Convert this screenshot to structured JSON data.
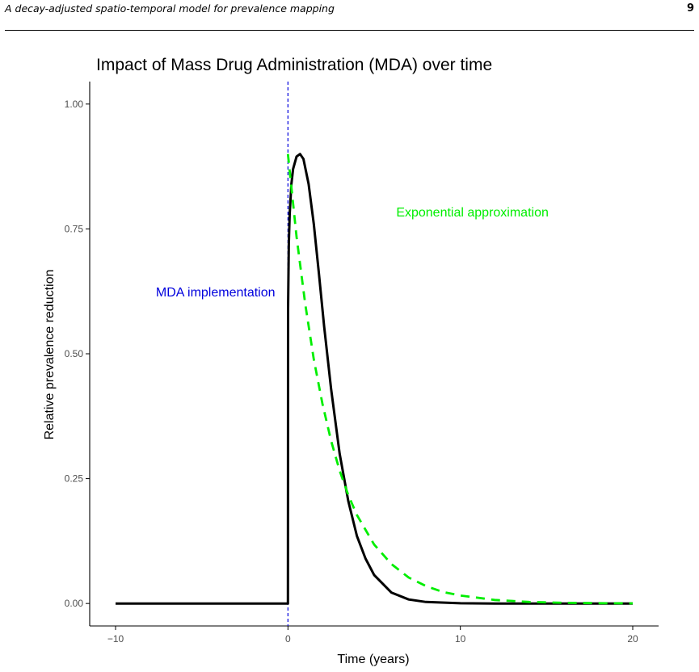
{
  "page": {
    "running_title": "A decay-adjusted spatio-temporal model for prevalence mapping",
    "page_number": "9"
  },
  "chart_data": {
    "type": "line",
    "title": "Impact of Mass Drug Administration (MDA) over time",
    "xlabel": "Time (years)",
    "ylabel": "Relative prevalence reduction",
    "xlim": [
      -11.5,
      21.5
    ],
    "ylim": [
      -0.045,
      1.045
    ],
    "x_ticks": [
      -10,
      0,
      10,
      20
    ],
    "x_tick_labels": [
      "−10",
      "0",
      "10",
      "20"
    ],
    "y_ticks": [
      0,
      0.25,
      0.5,
      0.75,
      1
    ],
    "y_tick_labels": [
      "0.00",
      "0.25",
      "0.50",
      "0.75",
      "1.00"
    ],
    "grid": false,
    "series": [
      {
        "color": "#000000",
        "style": "solid",
        "x": [
          -10,
          -5,
          -0.05,
          0,
          0.01,
          0.05,
          0.1,
          0.2,
          0.3,
          0.5,
          0.7,
          0.9,
          1.2,
          1.5,
          1.8,
          2.1,
          2.5,
          3,
          3.5,
          4,
          4.5,
          5,
          6,
          7,
          8,
          10,
          12,
          15,
          20
        ],
        "y": [
          0,
          0,
          0,
          0,
          0.59,
          0.72,
          0.78,
          0.84,
          0.87,
          0.895,
          0.9,
          0.89,
          0.84,
          0.76,
          0.66,
          0.555,
          0.43,
          0.3,
          0.205,
          0.135,
          0.09,
          0.057,
          0.022,
          0.008,
          0.003,
          0.0005,
          0,
          0,
          0
        ]
      },
      {
        "color": "#00ee00",
        "style": "dashed",
        "x": [
          0,
          0.5,
          1,
          1.5,
          2,
          2.5,
          3,
          3.5,
          4,
          5,
          6,
          7,
          8,
          9,
          10,
          12,
          14,
          16,
          18,
          20
        ],
        "y": [
          0.9,
          0.734,
          0.6,
          0.489,
          0.4,
          0.326,
          0.266,
          0.217,
          0.177,
          0.118,
          0.079,
          0.052,
          0.035,
          0.023,
          0.016,
          0.007,
          0.003,
          0.0014,
          0.0006,
          0.0003
        ]
      }
    ],
    "vline": {
      "x": 0,
      "color": "#0000dd",
      "style": "dashed"
    },
    "annotations": [
      {
        "text": "Exponential approximation",
        "x": 10.7,
        "y": 0.775,
        "color": "#00ee00"
      },
      {
        "text": "MDA implementation",
        "x": -4.2,
        "y": 0.615,
        "color": "#0000dd"
      }
    ]
  }
}
